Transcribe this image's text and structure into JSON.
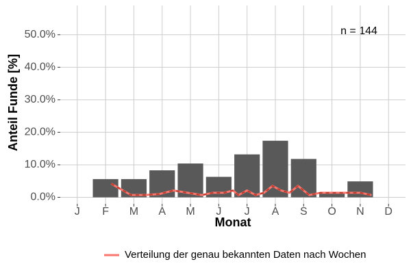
{
  "chart_data": {
    "type": "bar",
    "categories": [
      "J",
      "F",
      "M",
      "A",
      "M",
      "J",
      "J",
      "A",
      "S",
      "O",
      "N",
      "D"
    ],
    "values": [
      0,
      5.6,
      5.6,
      8.3,
      10.4,
      6.3,
      13.2,
      17.4,
      11.8,
      1.4,
      4.9,
      0
    ],
    "color": "#595959",
    "xlim": [
      0.4,
      12.6
    ],
    "ylim": [
      -2,
      59
    ],
    "yticks": [
      {
        "value": 0,
        "label": "0.0%"
      },
      {
        "value": 10,
        "label": "10.0%"
      },
      {
        "value": 20,
        "label": "20.0%"
      },
      {
        "value": 30,
        "label": "30.0%"
      },
      {
        "value": 40,
        "label": "40.0%"
      },
      {
        "value": 50,
        "label": "50.0%"
      }
    ],
    "grid": true,
    "x_label": "Monat",
    "y_label": "Anteil Funde [%]",
    "annotation": "n = 144",
    "legend_position": "bottom",
    "line": {
      "name": "Verteilung der genau bekannten Daten nach Wochen",
      "color": "#f8766d",
      "dash_color": "#c0392b",
      "x": [
        2.2,
        2.9,
        3.4,
        3.9,
        4.4,
        4.9,
        5.4,
        5.8,
        6.2,
        6.5,
        6.7,
        7.0,
        7.3,
        7.6,
        7.9,
        8.2,
        8.5,
        8.8,
        9.2,
        9.6,
        10.0,
        10.5,
        11.0,
        11.4
      ],
      "values": [
        4.2,
        0.7,
        0.7,
        1.0,
        2.1,
        1.4,
        0.7,
        1.4,
        1.4,
        2.1,
        0.7,
        2.1,
        0.7,
        1.4,
        3.5,
        2.1,
        1.4,
        3.5,
        0.7,
        1.4,
        1.4,
        1.4,
        1.4,
        0.7
      ]
    }
  }
}
